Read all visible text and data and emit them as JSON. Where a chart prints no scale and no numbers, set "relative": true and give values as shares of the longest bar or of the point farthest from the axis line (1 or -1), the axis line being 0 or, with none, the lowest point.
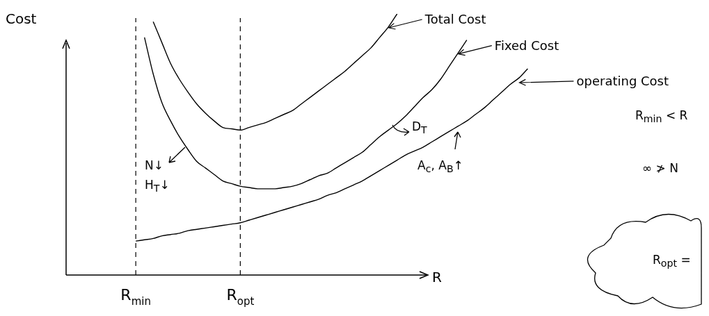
{
  "chart_data": {
    "type": "line",
    "relative": true,
    "xlabel": "R",
    "ylabel": "Cost",
    "categories": [
      null,
      null,
      null,
      null,
      null,
      null,
      null,
      null,
      "R$_{min}$",
      null,
      null,
      null,
      null,
      null,
      null,
      null,
      null,
      null,
      null,
      null,
      "R$_{opt}$",
      null,
      null,
      null,
      null,
      null,
      null,
      null,
      null,
      null,
      null,
      null,
      null,
      null,
      null,
      null,
      null,
      null,
      null,
      null,
      null,
      null,
      null,
      null,
      null,
      null,
      null,
      null,
      null,
      null,
      null,
      null,
      null,
      null,
      null
    ],
    "series": [
      {
        "name": "Total Cost",
        "color": "#000000",
        "values": [
          null,
          null,
          null,
          null,
          null,
          null,
          null,
          null,
          null,
          null,
          0.97,
          0.89,
          0.81,
          0.75,
          0.7,
          0.655,
          0.62,
          0.59,
          0.565,
          0.56,
          0.555,
          0.565,
          0.575,
          0.585,
          0.6,
          0.615,
          0.63,
          0.655,
          0.68,
          0.705,
          0.73,
          0.755,
          0.78,
          0.81,
          0.84,
          0.87,
          0.91,
          0.95,
          1.0,
          null,
          null,
          null,
          null,
          null,
          null,
          null,
          null,
          null,
          null,
          null,
          null,
          null,
          null,
          null,
          null
        ]
      },
      {
        "name": "Fixed Cost",
        "color": "#000000",
        "values": [
          null,
          null,
          null,
          null,
          null,
          null,
          null,
          null,
          null,
          0.91,
          0.77,
          0.66,
          0.59,
          0.53,
          0.48,
          0.435,
          0.41,
          0.385,
          0.36,
          0.35,
          0.34,
          0.335,
          0.33,
          0.33,
          0.33,
          0.335,
          0.34,
          0.35,
          0.365,
          0.38,
          0.39,
          0.41,
          0.43,
          0.45,
          0.47,
          0.5,
          0.53,
          0.555,
          0.58,
          0.61,
          0.645,
          0.68,
          0.71,
          0.75,
          0.8,
          0.85,
          0.9,
          null,
          null,
          null,
          null,
          null,
          null,
          null,
          null
        ]
      },
      {
        "name": "operating Cost",
        "color": "#000000",
        "values": [
          null,
          null,
          null,
          null,
          null,
          null,
          null,
          null,
          0.13,
          0.135,
          0.14,
          0.15,
          0.155,
          0.16,
          0.17,
          0.175,
          0.18,
          0.185,
          0.19,
          0.195,
          0.2,
          0.21,
          0.22,
          0.23,
          0.24,
          0.25,
          0.26,
          0.27,
          0.28,
          0.29,
          0.305,
          0.315,
          0.33,
          0.345,
          0.36,
          0.38,
          0.4,
          0.42,
          0.44,
          0.46,
          0.475,
          0.49,
          0.51,
          0.53,
          0.55,
          0.57,
          0.59,
          0.615,
          0.64,
          0.67,
          0.7,
          0.73,
          0.755,
          0.79,
          null
        ]
      }
    ],
    "ref_lines": [
      {
        "axis": "x",
        "value": "R$_{min}$",
        "line_style": "dashed"
      },
      {
        "axis": "x",
        "value": "R$_{opt}$",
        "line_style": "dashed"
      }
    ],
    "annotations": [
      "N↓",
      "H$_{T}$↓",
      "D$_{T}$",
      "A$_{c}$, A$_{B}$↑",
      "R$_{min}$ < R",
      "∞ ≯ N",
      "R$_{opt}$ ="
    ],
    "grid": false,
    "legend": "right",
    "marker": "none",
    "line_style": "solid"
  }
}
